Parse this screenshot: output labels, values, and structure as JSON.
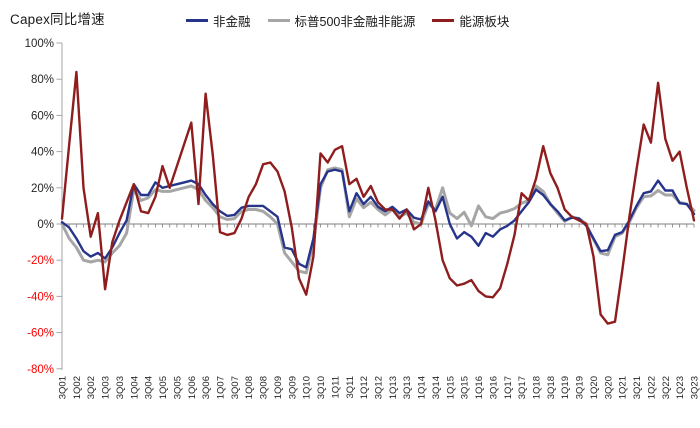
{
  "title": "Capex同比增速",
  "legend": [
    {
      "label": "非金融",
      "color": "#27348B"
    },
    {
      "label": "标普500非金融非能源",
      "color": "#A6A6A6"
    },
    {
      "label": "能源板块",
      "color": "#8F1D1D"
    }
  ],
  "axis_style": {
    "axis_color": "#A6A6A6",
    "zero_line_color": "#7F7F7F",
    "tick_label_color": "#262626",
    "negative_tick_label_color": "#FF0000"
  },
  "chart_data": {
    "type": "line",
    "title": "Capex同比增速",
    "ylabel": "",
    "xlabel": "",
    "ylim": [
      -80,
      100
    ],
    "y_ticks": [
      100,
      80,
      60,
      40,
      20,
      0,
      -20,
      -40,
      -60,
      -80
    ],
    "y_tick_suffix": "%",
    "x_tick_every": 2,
    "grid": false,
    "legend_position": "top",
    "x": [
      "3Q01",
      "4Q01",
      "1Q02",
      "2Q02",
      "3Q02",
      "4Q02",
      "1Q03",
      "2Q03",
      "3Q03",
      "4Q03",
      "1Q04",
      "2Q04",
      "3Q04",
      "4Q04",
      "1Q05",
      "2Q05",
      "3Q05",
      "4Q05",
      "1Q06",
      "2Q06",
      "3Q06",
      "4Q06",
      "1Q07",
      "2Q07",
      "3Q07",
      "4Q07",
      "1Q08",
      "2Q08",
      "3Q08",
      "4Q08",
      "1Q09",
      "2Q09",
      "3Q09",
      "4Q09",
      "1Q10",
      "2Q10",
      "3Q10",
      "4Q10",
      "1Q11",
      "2Q11",
      "3Q11",
      "4Q11",
      "1Q12",
      "2Q12",
      "3Q12",
      "4Q12",
      "1Q13",
      "2Q13",
      "3Q13",
      "4Q13",
      "1Q14",
      "2Q14",
      "3Q14",
      "4Q14",
      "1Q15",
      "2Q15",
      "3Q15",
      "4Q15",
      "1Q16",
      "2Q16",
      "3Q16",
      "4Q16",
      "1Q17",
      "2Q17",
      "3Q17",
      "4Q17",
      "1Q18",
      "2Q18",
      "3Q18",
      "4Q18",
      "1Q19",
      "2Q19",
      "3Q19",
      "4Q19",
      "1Q20",
      "2Q20",
      "3Q20",
      "4Q20",
      "1Q21",
      "2Q21",
      "3Q21",
      "4Q21",
      "1Q22",
      "2Q22",
      "3Q22",
      "4Q22",
      "1Q23",
      "2Q23",
      "3Q23"
    ],
    "series": [
      {
        "name": "标普500非金融非能源",
        "color": "#A6A6A6",
        "width": 3,
        "values": [
          0,
          -8,
          -13,
          -20,
          -21,
          -20,
          -21,
          -16,
          -12,
          -5,
          19,
          13,
          14.5,
          19,
          18,
          18,
          19,
          20,
          21,
          19,
          13,
          9,
          4,
          2.5,
          3,
          7,
          8,
          8,
          7,
          4,
          0,
          -16,
          -21,
          -26,
          -27,
          -11,
          20,
          30,
          31,
          30,
          4,
          14,
          9,
          12,
          8,
          5,
          8,
          4,
          6,
          1,
          0,
          11,
          8,
          20,
          6,
          3,
          6.5,
          -1,
          10,
          4,
          3,
          6,
          7,
          8.5,
          11.5,
          13,
          21,
          18,
          11,
          6,
          1.5,
          4,
          3,
          0,
          -8.5,
          -16,
          -17,
          -7,
          -5,
          1,
          9,
          15,
          15.5,
          18.5,
          16,
          16,
          12,
          11,
          7.5
        ]
      },
      {
        "name": "非金融",
        "color": "#27348B",
        "width": 2.4,
        "values": [
          1,
          -2,
          -8,
          -15,
          -18,
          -16,
          -19,
          -13,
          -5,
          2,
          22,
          16,
          16,
          23,
          20,
          21,
          22,
          23,
          24,
          22,
          16,
          11,
          7,
          4.5,
          5,
          9,
          10,
          10,
          10,
          7,
          4,
          -13,
          -14,
          -22,
          -24,
          -8,
          22,
          29,
          30,
          29,
          7,
          17,
          11,
          15,
          9.5,
          7,
          9.5,
          6,
          8,
          3.5,
          2.5,
          12.5,
          7,
          15,
          0,
          -8,
          -4.5,
          -7,
          -12,
          -5,
          -7,
          -3,
          -1,
          2,
          7,
          12,
          19,
          16,
          11,
          7,
          2,
          3.5,
          3,
          -1,
          -8,
          -15,
          -14.5,
          -6,
          -4.5,
          2,
          10,
          17,
          18,
          24,
          18.5,
          18.5,
          11.5,
          11,
          5.5
        ]
      },
      {
        "name": "能源板块",
        "color": "#8F1D1D",
        "width": 2.4,
        "values": [
          3,
          44,
          84,
          20,
          -7,
          6,
          -36,
          -10,
          2,
          12,
          22,
          7,
          6,
          15,
          32,
          20,
          32,
          44,
          56,
          11,
          72,
          38,
          -4.5,
          -6,
          -5,
          3,
          15,
          22,
          33,
          34,
          29,
          18,
          -2,
          -30,
          -39,
          -18,
          39,
          34,
          41,
          43,
          22,
          25,
          15,
          21,
          12,
          8,
          8,
          3,
          8,
          -3,
          0,
          20,
          2,
          -20,
          -30,
          -34,
          -33,
          -31,
          -37,
          -40,
          -40.5,
          -35.5,
          -22,
          -6,
          17,
          13,
          25,
          43,
          28,
          20,
          8,
          4,
          2,
          0,
          -18,
          -50,
          -55,
          -54,
          -26,
          4,
          30,
          55,
          45,
          78,
          47,
          35,
          40,
          20,
          2
        ]
      }
    ]
  }
}
